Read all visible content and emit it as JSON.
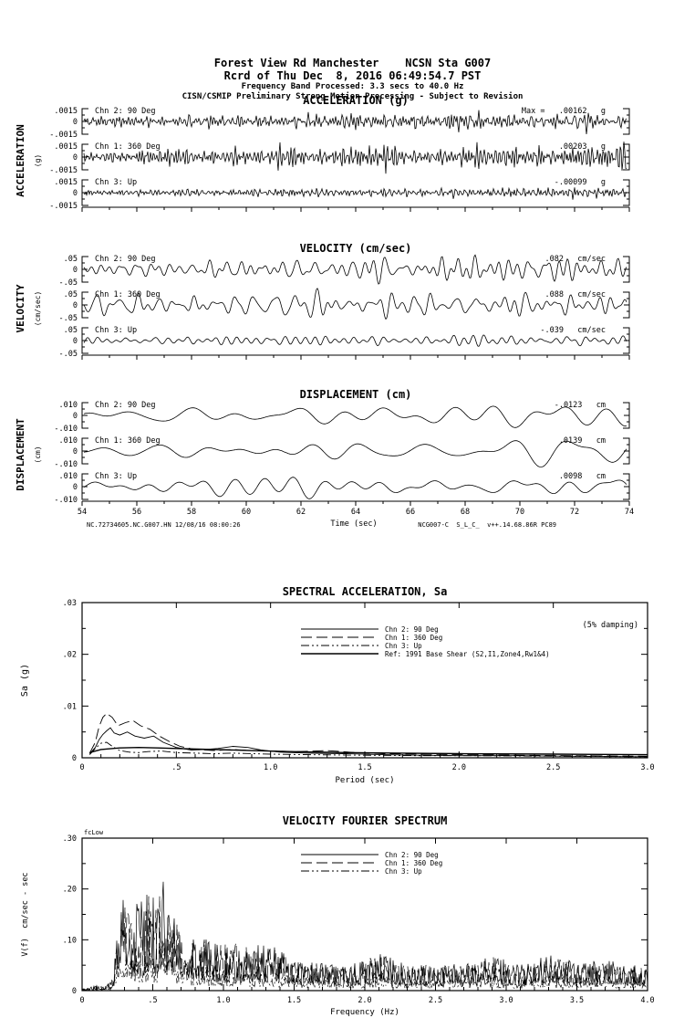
{
  "header": {
    "line1": "Forest View Rd Manchester    NCSN Sta G007",
    "line2": "Rcrd of Thu Dec  8, 2016 06:49:54.7 PST",
    "line3": "Frequency Band Processed: 3.3 secs to 40.0 Hz",
    "line4": "CISN/CSMIP Preliminary Strong Motion Processing - Subject to Revision"
  },
  "footer": {
    "left": "NC.72734605.NC.G007.HN 12/08/16 08:00:26",
    "right": "NCG007-C  S_L_C_  v++.14.68.86R PC89"
  },
  "colors": {
    "ink": "#000000",
    "paper": "#ffffff"
  },
  "chart_data": [
    {
      "type": "line",
      "id": "acceleration",
      "kind": "timeseries",
      "title": "ACCELERATION (g)",
      "side_label": "ACCELERATION",
      "side_units": "(g)",
      "amp_ticks": [
        ".0015",
        "0",
        "-.0015"
      ],
      "x_range": [
        54,
        74
      ],
      "series": [
        {
          "name": "Chn 2: 90 Deg",
          "max_label": "Max =   .00162",
          "unit": "g",
          "peak": 0.00162,
          "gen": {
            "seed": 11,
            "cycles": 210,
            "rel_amp": 1.0
          }
        },
        {
          "name": "Chn 1: 360 Deg",
          "max_label": ".00203",
          "unit": "g",
          "peak": 0.00203,
          "gen": {
            "seed": 12,
            "cycles": 215,
            "rel_amp": 1.3
          }
        },
        {
          "name": "Chn 3: Up",
          "max_label": "-.00099",
          "unit": "g",
          "peak": -0.00099,
          "gen": {
            "seed": 13,
            "cycles": 230,
            "rel_amp": 0.55
          }
        }
      ]
    },
    {
      "type": "line",
      "id": "velocity",
      "kind": "timeseries",
      "title": "VELOCITY (cm/sec)",
      "side_label": "VELOCITY",
      "side_units": "(cm/sec)",
      "amp_ticks": [
        ".05",
        "0",
        "-.05"
      ],
      "x_range": [
        54,
        74
      ],
      "series": [
        {
          "name": "Chn 2: 90 Deg",
          "max_label": ".082",
          "unit": "cm/sec",
          "peak": 0.082,
          "gen": {
            "seed": 21,
            "cycles": 72,
            "rel_amp": 1.15
          }
        },
        {
          "name": "Chn 1: 360 Deg",
          "max_label": ".088",
          "unit": "cm/sec",
          "peak": 0.088,
          "gen": {
            "seed": 22,
            "cycles": 70,
            "rel_amp": 1.3
          }
        },
        {
          "name": "Chn 3: Up",
          "max_label": "-.039",
          "unit": "cm/sec",
          "peak": -0.039,
          "gen": {
            "seed": 23,
            "cycles": 60,
            "rel_amp": 0.45
          }
        }
      ]
    },
    {
      "type": "line",
      "id": "displacement",
      "kind": "timeseries",
      "title": "DISPLACEMENT (cm)",
      "side_label": "DISPLACEMENT",
      "side_units": "(cm)",
      "amp_ticks": [
        ".010",
        "0",
        "-.010"
      ],
      "x_range": [
        54,
        74
      ],
      "x_tick_labels": [
        "54",
        "56",
        "58",
        "60",
        "62",
        "64",
        "66",
        "68",
        "70",
        "72",
        "74"
      ],
      "x_axis_label": "Time (sec)",
      "series": [
        {
          "name": "Chn 2: 90 Deg",
          "max_label": "-.0123",
          "unit": "cm",
          "peak": -0.0123,
          "gen": {
            "seed": 31,
            "cycles": 18,
            "rel_amp": 0.95
          }
        },
        {
          "name": "Chn 1: 360 Deg",
          "max_label": ".0139",
          "unit": "cm",
          "peak": 0.0139,
          "gen": {
            "seed": 32,
            "cycles": 18,
            "rel_amp": 1.25
          }
        },
        {
          "name": "Chn 3: Up",
          "max_label": ".0098",
          "unit": "cm",
          "peak": 0.0098,
          "gen": {
            "seed": 33,
            "cycles": 20,
            "rel_amp": 0.95
          }
        }
      ]
    },
    {
      "type": "line",
      "id": "spectral_acceleration",
      "kind": "spectrum",
      "title": "SPECTRAL ACCELERATION, Sa",
      "damping_note": "(5% damping)",
      "xlabel": "Period (sec)",
      "ylabel": "Sa (g)",
      "xlim": [
        0,
        3
      ],
      "ylim": [
        0,
        0.03
      ],
      "x_tick_labels": [
        "0",
        ".5",
        "1.0",
        "1.5",
        "2.0",
        "2.5",
        "3.0"
      ],
      "y_tick_labels": [
        "0",
        ".01",
        ".02",
        ".03"
      ],
      "x_minor_step": 0.1,
      "y_minor_step": 0.005,
      "series": [
        {
          "name": "Chn 2: 90 Deg",
          "style": "solid",
          "points": [
            [
              0.04,
              0.0008
            ],
            [
              0.07,
              0.002
            ],
            [
              0.09,
              0.0035
            ],
            [
              0.11,
              0.0045
            ],
            [
              0.13,
              0.0052
            ],
            [
              0.15,
              0.0058
            ],
            [
              0.17,
              0.0048
            ],
            [
              0.2,
              0.0044
            ],
            [
              0.24,
              0.005
            ],
            [
              0.28,
              0.0042
            ],
            [
              0.33,
              0.0038
            ],
            [
              0.38,
              0.0042
            ],
            [
              0.43,
              0.003
            ],
            [
              0.5,
              0.002
            ],
            [
              0.58,
              0.0015
            ],
            [
              0.65,
              0.0016
            ],
            [
              0.72,
              0.0018
            ],
            [
              0.8,
              0.0022
            ],
            [
              0.88,
              0.002
            ],
            [
              0.95,
              0.0015
            ],
            [
              1.05,
              0.0011
            ],
            [
              1.2,
              0.0009
            ],
            [
              1.4,
              0.0008
            ],
            [
              1.6,
              0.0006
            ],
            [
              1.8,
              0.0005
            ],
            [
              2.0,
              0.0004
            ],
            [
              2.3,
              0.0004
            ],
            [
              2.6,
              0.0003
            ],
            [
              3.0,
              0.0002
            ]
          ]
        },
        {
          "name": "Chn 1: 360 Deg",
          "style": "longdash",
          "points": [
            [
              0.04,
              0.0009
            ],
            [
              0.07,
              0.003
            ],
            [
              0.09,
              0.006
            ],
            [
              0.11,
              0.0078
            ],
            [
              0.13,
              0.0086
            ],
            [
              0.16,
              0.0078
            ],
            [
              0.19,
              0.0062
            ],
            [
              0.23,
              0.0068
            ],
            [
              0.27,
              0.0072
            ],
            [
              0.31,
              0.0062
            ],
            [
              0.36,
              0.0055
            ],
            [
              0.41,
              0.0042
            ],
            [
              0.46,
              0.0032
            ],
            [
              0.52,
              0.0022
            ],
            [
              0.6,
              0.0016
            ],
            [
              0.7,
              0.0014
            ],
            [
              0.8,
              0.0016
            ],
            [
              0.9,
              0.0014
            ],
            [
              1.0,
              0.0013
            ],
            [
              1.15,
              0.0012
            ],
            [
              1.3,
              0.0014
            ],
            [
              1.45,
              0.001
            ],
            [
              1.6,
              0.0008
            ],
            [
              1.8,
              0.0007
            ],
            [
              2.0,
              0.0006
            ],
            [
              2.3,
              0.0005
            ],
            [
              2.6,
              0.0004
            ],
            [
              3.0,
              0.0003
            ]
          ]
        },
        {
          "name": "Chn 3: Up",
          "style": "dashdot",
          "points": [
            [
              0.04,
              0.0006
            ],
            [
              0.07,
              0.0018
            ],
            [
              0.1,
              0.0028
            ],
            [
              0.13,
              0.003
            ],
            [
              0.16,
              0.0022
            ],
            [
              0.2,
              0.0014
            ],
            [
              0.25,
              0.0011
            ],
            [
              0.3,
              0.001
            ],
            [
              0.35,
              0.0012
            ],
            [
              0.42,
              0.0013
            ],
            [
              0.5,
              0.001
            ],
            [
              0.6,
              0.0009
            ],
            [
              0.7,
              0.0008
            ],
            [
              0.8,
              0.0009
            ],
            [
              0.9,
              0.0008
            ],
            [
              1.0,
              0.0007
            ],
            [
              1.2,
              0.0006
            ],
            [
              1.5,
              0.0005
            ],
            [
              1.8,
              0.0004
            ],
            [
              2.1,
              0.0004
            ],
            [
              2.5,
              0.0003
            ],
            [
              3.0,
              0.0002
            ]
          ]
        },
        {
          "name": "Ref: 1991 Base Shear (S2,I1,Zone4,Rw1&4)",
          "style": "ref",
          "points": [
            [
              0.04,
              0.001
            ],
            [
              0.1,
              0.0016
            ],
            [
              0.2,
              0.0019
            ],
            [
              0.3,
              0.002
            ],
            [
              0.4,
              0.0019
            ],
            [
              0.5,
              0.0018
            ],
            [
              0.7,
              0.0016
            ],
            [
              0.9,
              0.0014
            ],
            [
              1.1,
              0.0012
            ],
            [
              1.4,
              0.001
            ],
            [
              1.7,
              0.0009
            ],
            [
              2.0,
              0.0008
            ],
            [
              2.5,
              0.0007
            ],
            [
              3.0,
              0.0006
            ]
          ]
        }
      ]
    },
    {
      "type": "line",
      "id": "velocity_fourier_spectrum",
      "kind": "spectrum",
      "title": "VELOCITY FOURIER SPECTRUM",
      "corner_label": "fcLow",
      "xlabel": "Frequency (Hz)",
      "ylabel": "V(f)  cm/sec - sec",
      "xlim": [
        0,
        4
      ],
      "ylim": [
        0,
        0.3
      ],
      "x_tick_labels": [
        "0",
        ".5",
        "1.0",
        "1.5",
        "2.0",
        "2.5",
        "3.0",
        "3.5",
        "4.0"
      ],
      "y_tick_labels": [
        "0",
        ".10",
        ".20",
        ".30"
      ],
      "x_minor_step": 0.1,
      "y_minor_step": 0.05,
      "envelope": [
        [
          0.0,
          0.003
        ],
        [
          0.1,
          0.01
        ],
        [
          0.18,
          0.012
        ],
        [
          0.22,
          0.03
        ],
        [
          0.25,
          0.13
        ],
        [
          0.3,
          0.19
        ],
        [
          0.35,
          0.16
        ],
        [
          0.42,
          0.18
        ],
        [
          0.47,
          0.21
        ],
        [
          0.52,
          0.17
        ],
        [
          0.57,
          0.22
        ],
        [
          0.62,
          0.15
        ],
        [
          0.7,
          0.13
        ],
        [
          0.8,
          0.12
        ],
        [
          0.9,
          0.1
        ],
        [
          1.0,
          0.095
        ],
        [
          1.1,
          0.1
        ],
        [
          1.2,
          0.085
        ],
        [
          1.3,
          0.095
        ],
        [
          1.4,
          0.08
        ],
        [
          1.55,
          0.06
        ],
        [
          1.7,
          0.055
        ],
        [
          1.9,
          0.05
        ],
        [
          2.1,
          0.075
        ],
        [
          2.3,
          0.05
        ],
        [
          2.5,
          0.055
        ],
        [
          2.7,
          0.05
        ],
        [
          2.9,
          0.07
        ],
        [
          3.1,
          0.05
        ],
        [
          3.3,
          0.07
        ],
        [
          3.5,
          0.055
        ],
        [
          3.7,
          0.06
        ],
        [
          4.0,
          0.045
        ]
      ],
      "series": [
        {
          "name": "Chn 2: 90 Deg",
          "style": "solid",
          "gen": {
            "seed": 41,
            "scale": 1.0
          }
        },
        {
          "name": "Chn 1: 360 Deg",
          "style": "longdash",
          "gen": {
            "seed": 42,
            "scale": 0.95
          }
        },
        {
          "name": "Chn 3: Up",
          "style": "dashdot",
          "gen": {
            "seed": 43,
            "scale": 0.45
          }
        }
      ]
    }
  ]
}
